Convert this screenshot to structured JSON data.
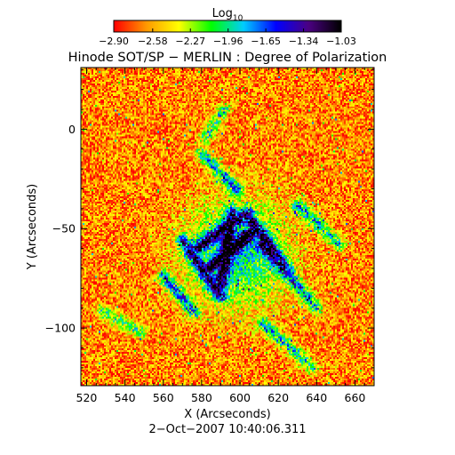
{
  "chart_data": {
    "type": "heatmap",
    "title": "Hinode SOT/SP − MERLIN : Degree of Polarization",
    "xlabel": "X (Arcseconds)",
    "ylabel": "Y (Arcseconds)",
    "footer": "2−Oct−2007 10:40:06.311",
    "xlim": [
      517,
      670
    ],
    "ylim": [
      -129,
      31
    ],
    "x_ticks": [
      520,
      540,
      560,
      580,
      600,
      620,
      640,
      660
    ],
    "y_ticks": [
      0,
      -50,
      -100
    ],
    "x_tick_labels": [
      "520",
      "540",
      "560",
      "580",
      "600",
      "620",
      "640",
      "660"
    ],
    "y_tick_labels": [
      "0",
      "−50",
      "−100"
    ],
    "colorbar": {
      "label_base": "Log",
      "label_sub": "10",
      "range": [
        -2.9,
        -1.03
      ],
      "ticks": [
        -2.9,
        -2.58,
        -2.27,
        -1.96,
        -1.65,
        -1.34,
        -1.03
      ],
      "tick_labels": [
        "−2.90",
        "−2.58",
        "−2.27",
        "−1.96",
        "−1.65",
        "−1.34",
        "−1.03"
      ],
      "colors": [
        "#ff0000",
        "#ff9900",
        "#ffff00",
        "#00ff00",
        "#00ccff",
        "#0000ff",
        "#4b0082",
        "#000000"
      ]
    },
    "features": {
      "background_level": -2.65,
      "noise_amplitude": 0.3,
      "central_region": {
        "x": 598,
        "y": -63,
        "peak_level": -1.3
      },
      "network_lanes": [
        {
          "from": [
            574,
            -62
          ],
          "to": [
            604,
            -42
          ]
        },
        {
          "from": [
            584,
            -70
          ],
          "to": [
            606,
            -52
          ]
        },
        {
          "from": [
            570,
            -56
          ],
          "to": [
            590,
            -84
          ]
        },
        {
          "from": [
            604,
            -44
          ],
          "to": [
            626,
            -72
          ]
        },
        {
          "from": [
            596,
            -42
          ],
          "to": [
            590,
            -78
          ]
        },
        {
          "from": [
            612,
            -58
          ],
          "to": [
            640,
            -90
          ]
        },
        {
          "from": [
            580,
            -12
          ],
          "to": [
            598,
            -30
          ]
        },
        {
          "from": [
            592,
            10
          ],
          "to": [
            582,
            -4
          ]
        },
        {
          "from": [
            612,
            -98
          ],
          "to": [
            638,
            -120
          ]
        },
        {
          "from": [
            528,
            -92
          ],
          "to": [
            548,
            -102
          ]
        },
        {
          "from": [
            560,
            -74
          ],
          "to": [
            576,
            -92
          ]
        },
        {
          "from": [
            630,
            -38
          ],
          "to": [
            652,
            -58
          ]
        }
      ]
    }
  }
}
